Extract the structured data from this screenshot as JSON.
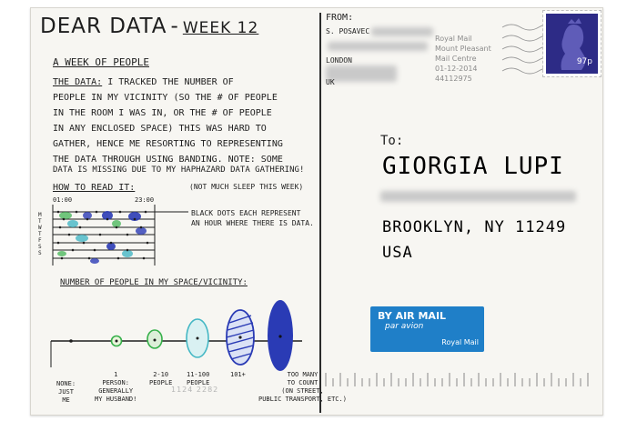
{
  "header": {
    "title": "DEAR DATA",
    "dash": "-",
    "week": "WEEK 12"
  },
  "front": {
    "subtitle": "A WEEK OF PEOPLE",
    "data_label": "THE DATA:",
    "data_lines": [
      "I TRACKED THE NUMBER OF",
      "PEOPLE IN MY VICINITY (SO THE # OF PEOPLE",
      "IN THE ROOM I WAS IN, OR THE # OF PEOPLE",
      "IN ANY ENCLOSED SPACE) THIS WAS HARD TO",
      "GATHER, HENCE ME RESORTING TO REPRESENTING",
      "THE DATA THROUGH USING BANDING. NOTE: SOME",
      "DATA IS MISSING DUE TO MY HAPHAZARD DATA",
      "GATHERING!"
    ],
    "howto_label": "HOW TO READ IT:",
    "howto_note": "(NOT MUCH SLEEP THIS WEEK)",
    "time_start": "01:00",
    "time_end": "23:00",
    "days": [
      "M",
      "T",
      "W",
      "T",
      "F",
      "S",
      "S"
    ],
    "black_dots_note_line1": "BLACK DOTS EACH REPRESENT",
    "black_dots_note_line2": "AN HOUR WHERE THERE IS DATA.",
    "legend_title": "NUMBER OF PEOPLE IN MY SPACE/VICINITY:",
    "categories": [
      {
        "label": "NONE:\nJUST\nME"
      },
      {
        "label": "1\nPERSON:\nGENERALLY\nMY HUSBAND!"
      },
      {
        "label": "2-10\nPEOPLE"
      },
      {
        "label": "11-100\nPEOPLE"
      },
      {
        "label": "101+"
      },
      {
        "label": "TOO MANY\nTO COUNT\n(ON STREET,\nPUBLIC TRANSPORT, ETC.)"
      }
    ]
  },
  "back": {
    "from_label": "FROM:",
    "sender_name": "S. POSAVEC",
    "city": "LONDON",
    "country": "UK",
    "postmark_lines": [
      "Royal Mail",
      "Mount Pleasant",
      "Mail Centre",
      "01-12-2014",
      "44112975"
    ],
    "stamp_value": "97p",
    "to_label": "To:",
    "recipient": "GIORGIA LUPI",
    "city_line": "BROOKLYN, NY 11249",
    "country_line": "USA",
    "airmail": {
      "line1": "BY AIR MAIL",
      "line2": "par avion",
      "line3": "Royal Mail"
    },
    "serial": "1124 2282"
  },
  "colors": {
    "ink": "#1e1e1e",
    "blue": "#2a3bb5",
    "green": "#36b04a",
    "teal": "#43b7c4",
    "airmail_blue": "#1f7fc8",
    "stamp": "#2d2b86"
  }
}
